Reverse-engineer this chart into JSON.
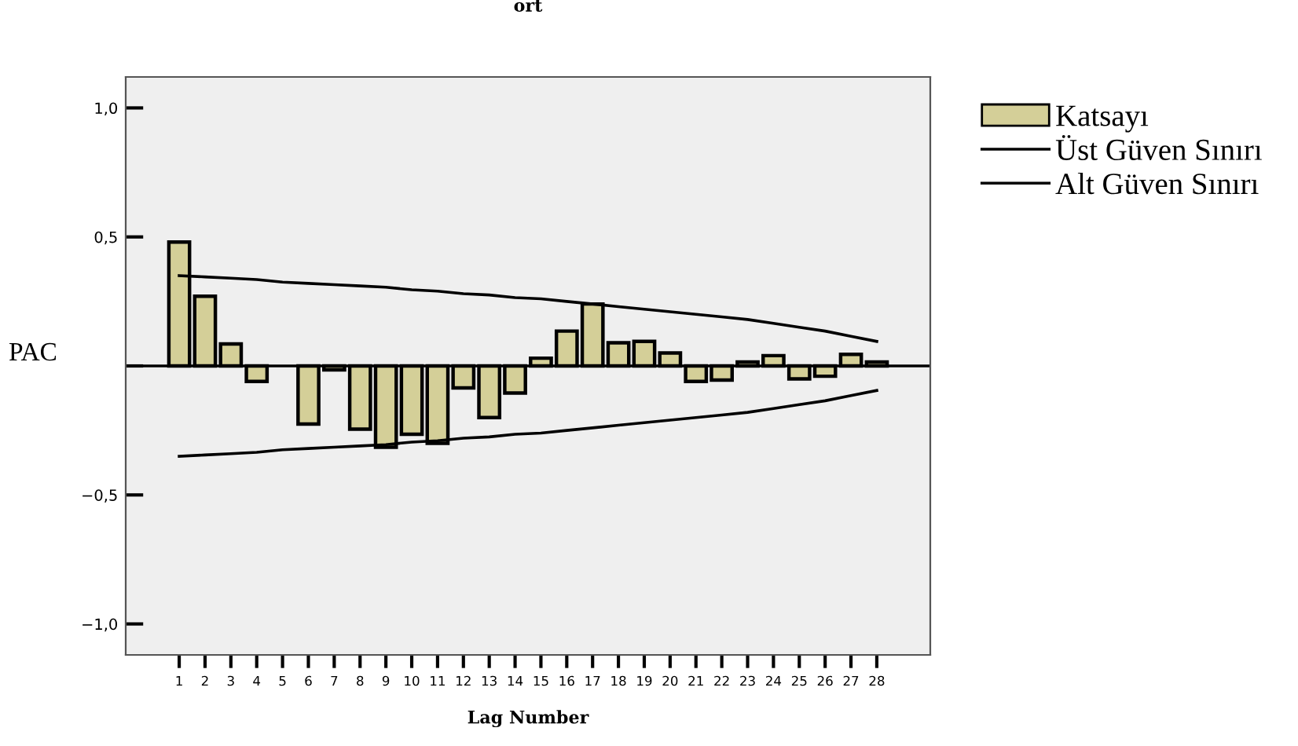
{
  "chart_data": {
    "type": "bar",
    "title": "ort",
    "xlabel": "Lag Number",
    "ylabel": "PAC",
    "categories": [
      "1",
      "2",
      "3",
      "4",
      "5",
      "6",
      "7",
      "8",
      "9",
      "10",
      "11",
      "12",
      "13",
      "14",
      "15",
      "16",
      "17",
      "18",
      "19",
      "20",
      "21",
      "22",
      "23",
      "24",
      "25",
      "26",
      "27",
      "28"
    ],
    "series": [
      {
        "name": "Katsayı",
        "color": "#d4cf98",
        "values": [
          0.48,
          0.27,
          0.085,
          -0.06,
          null,
          -0.225,
          -0.015,
          -0.245,
          -0.315,
          -0.265,
          -0.3,
          -0.085,
          -0.2,
          -0.105,
          0.03,
          0.135,
          0.24,
          0.09,
          0.095,
          0.05,
          -0.06,
          -0.055,
          0.015,
          0.04,
          -0.05,
          -0.04,
          0.045,
          0.015
        ]
      },
      {
        "name": "Üst Güven Sınırı",
        "type": "line",
        "color": "#000000",
        "values": [
          0.35,
          0.345,
          0.34,
          0.335,
          0.325,
          0.32,
          0.315,
          0.31,
          0.305,
          0.295,
          0.29,
          0.28,
          0.275,
          0.265,
          0.26,
          0.25,
          0.24,
          0.23,
          0.22,
          0.21,
          0.2,
          0.19,
          0.18,
          0.165,
          0.15,
          0.135,
          0.115,
          0.095
        ]
      },
      {
        "name": "Alt Güven Sınırı",
        "type": "line",
        "color": "#000000",
        "values": [
          -0.35,
          -0.345,
          -0.34,
          -0.335,
          -0.325,
          -0.32,
          -0.315,
          -0.31,
          -0.305,
          -0.295,
          -0.29,
          -0.28,
          -0.275,
          -0.265,
          -0.26,
          -0.25,
          -0.24,
          -0.23,
          -0.22,
          -0.21,
          -0.2,
          -0.19,
          -0.18,
          -0.165,
          -0.15,
          -0.135,
          -0.115,
          -0.095
        ]
      }
    ],
    "ylim": [
      -1.12,
      1.12
    ],
    "yticks": [
      {
        "value": -1.0,
        "label": "−1,0"
      },
      {
        "value": -0.5,
        "label": "−0,5"
      },
      {
        "value": 0,
        "label": null
      },
      {
        "value": 0.5,
        "label": "0,5"
      },
      {
        "value": 1.0,
        "label": "1,0"
      }
    ],
    "ref_lines": [
      {
        "axis": "y",
        "value": 0,
        "color": "#000000"
      }
    ],
    "grid": false,
    "legend": "top right",
    "marker": "none",
    "line_style": "solid"
  }
}
